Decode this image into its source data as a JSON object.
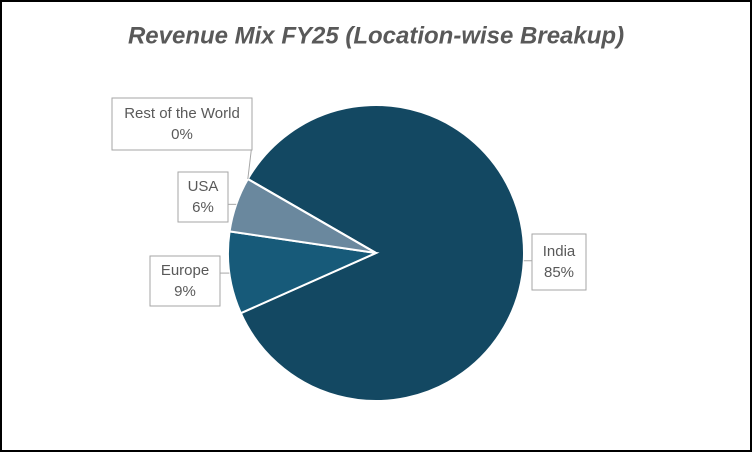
{
  "chart_data": {
    "type": "pie",
    "title": "Revenue Mix FY25 (Location-wise Breakup)",
    "categories": [
      "India",
      "Europe",
      "USA",
      "Rest of the World"
    ],
    "values": [
      85,
      9,
      6,
      0
    ],
    "value_labels": [
      "85%",
      "9%",
      "6%",
      "0%"
    ],
    "colors": [
      "#134862",
      "#175a79",
      "#6a889e",
      "#d9e1e7"
    ]
  }
}
